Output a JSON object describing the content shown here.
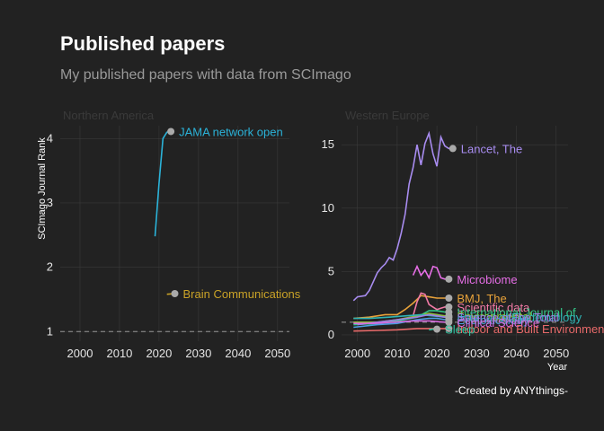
{
  "title": "Published papers",
  "subtitle": "My published papers with data from SCImago",
  "caption": "-Created by ANYthings-",
  "colors": {
    "background": "#222222",
    "grid": "#3a3a3a",
    "reference_line": "#9a9a9a",
    "endpoint": "#aaaaaa"
  },
  "chart_data": [
    {
      "type": "line",
      "facet": "Northern America",
      "xlabel": "",
      "ylabel": "SCImago Journal Rank",
      "xlim": [
        1995,
        2053
      ],
      "ylim": [
        0.85,
        4.2
      ],
      "x_ticks": [
        2000,
        2010,
        2020,
        2030,
        2040,
        2050
      ],
      "y_ticks": [
        1,
        2,
        3,
        4
      ],
      "reference_line_y": 1,
      "grid": true,
      "series": [
        {
          "name": "JAMA network open",
          "color": "#2bb3d9",
          "points": [
            [
              2019,
              2.48
            ],
            [
              2020,
              3.3
            ],
            [
              2021,
              4.0
            ],
            [
              2022,
              4.1
            ],
            [
              2023,
              4.11
            ]
          ]
        },
        {
          "name": "Brain Communications",
          "color": "#c9a227",
          "points": [
            [
              2022,
              1.58
            ],
            [
              2024,
              1.59
            ]
          ]
        }
      ]
    },
    {
      "type": "line",
      "facet": "Western Europe",
      "xlabel": "Year",
      "ylabel": "",
      "xlim": [
        1996,
        2053
      ],
      "ylim": [
        -0.5,
        16.5
      ],
      "x_ticks": [
        2000,
        2010,
        2020,
        2030,
        2040,
        2050
      ],
      "y_ticks": [
        0,
        5,
        10,
        15
      ],
      "reference_line_y": 1,
      "grid": true,
      "series": [
        {
          "name": "Lancet, The",
          "color": "#a88cf0",
          "points": [
            [
              1999,
              2.7
            ],
            [
              2000,
              3.0
            ],
            [
              2002,
              3.1
            ],
            [
              2003,
              3.5
            ],
            [
              2004,
              4.2
            ],
            [
              2005,
              4.9
            ],
            [
              2006,
              5.3
            ],
            [
              2007,
              5.6
            ],
            [
              2008,
              6.1
            ],
            [
              2009,
              5.9
            ],
            [
              2010,
              6.8
            ],
            [
              2011,
              8.0
            ],
            [
              2012,
              9.5
            ],
            [
              2013,
              11.9
            ],
            [
              2014,
              13.2
            ],
            [
              2015,
              15.0
            ],
            [
              2016,
              13.4
            ],
            [
              2017,
              15.1
            ],
            [
              2018,
              15.9
            ],
            [
              2019,
              14.3
            ],
            [
              2020,
              13.3
            ],
            [
              2021,
              15.6
            ],
            [
              2022,
              14.9
            ],
            [
              2023,
              14.7
            ],
            [
              2024,
              14.7
            ]
          ]
        },
        {
          "name": "Microbiome",
          "color": "#e66ee6",
          "points": [
            [
              2014,
              4.7
            ],
            [
              2015,
              5.4
            ],
            [
              2016,
              4.7
            ],
            [
              2017,
              5.1
            ],
            [
              2018,
              4.5
            ],
            [
              2019,
              5.4
            ],
            [
              2020,
              5.3
            ],
            [
              2021,
              4.5
            ],
            [
              2022,
              4.4
            ],
            [
              2023,
              4.4
            ]
          ]
        },
        {
          "name": "BMJ, The",
          "color": "#e8a23a",
          "points": [
            [
              1999,
              1.3
            ],
            [
              2003,
              1.4
            ],
            [
              2007,
              1.6
            ],
            [
              2010,
              1.6
            ],
            [
              2012,
              2.0
            ],
            [
              2014,
              2.5
            ],
            [
              2016,
              3.1
            ],
            [
              2018,
              3.0
            ],
            [
              2020,
              2.9
            ],
            [
              2022,
              2.9
            ],
            [
              2023,
              2.9
            ]
          ]
        },
        {
          "name": "Scientific data",
          "color": "#f27aa6",
          "points": [
            [
              2014,
              1.5
            ],
            [
              2015,
              2.6
            ],
            [
              2016,
              3.3
            ],
            [
              2017,
              3.2
            ],
            [
              2018,
              2.4
            ],
            [
              2019,
              2.2
            ],
            [
              2020,
              2.0
            ],
            [
              2021,
              2.1
            ],
            [
              2022,
              2.2
            ],
            [
              2023,
              2.2
            ]
          ]
        },
        {
          "name": "International Journal of",
          "color": "#33c98a",
          "points": [
            [
              1999,
              0.8
            ],
            [
              2005,
              0.9
            ],
            [
              2010,
              1.1
            ],
            [
              2015,
              1.4
            ],
            [
              2018,
              1.9
            ],
            [
              2020,
              1.9
            ],
            [
              2022,
              1.8
            ],
            [
              2023,
              1.8
            ]
          ]
        },
        {
          "name": "Environmental",
          "color": "#8fbf3b",
          "points": [
            [
              1999,
              1.0
            ],
            [
              2005,
              1.0
            ],
            [
              2010,
              1.2
            ],
            [
              2015,
              1.5
            ],
            [
              2018,
              1.7
            ],
            [
              2020,
              1.6
            ],
            [
              2022,
              1.5
            ],
            [
              2023,
              1.5
            ]
          ]
        },
        {
          "name": "Journal of Epidemiology",
          "color": "#2fb5b5",
          "points": [
            [
              1999,
              1.3
            ],
            [
              2003,
              1.3
            ],
            [
              2008,
              1.4
            ],
            [
              2012,
              1.5
            ],
            [
              2016,
              1.6
            ],
            [
              2019,
              1.5
            ],
            [
              2022,
              1.4
            ],
            [
              2023,
              1.4
            ]
          ]
        },
        {
          "name": "Ecotoxicology",
          "color": "#4a9fe0",
          "points": [
            [
              1999,
              0.6
            ],
            [
              2005,
              0.8
            ],
            [
              2010,
              0.9
            ],
            [
              2015,
              1.2
            ],
            [
              2018,
              1.3
            ],
            [
              2020,
              1.3
            ],
            [
              2022,
              1.2
            ],
            [
              2023,
              1.2
            ]
          ]
        },
        {
          "name": "Science of the Total",
          "color": "#a07ce6",
          "points": [
            [
              2000,
              0.8
            ],
            [
              2005,
              1.0
            ],
            [
              2010,
              1.2
            ],
            [
              2015,
              1.4
            ],
            [
              2018,
              1.6
            ],
            [
              2020,
              1.5
            ],
            [
              2022,
              1.4
            ],
            [
              2023,
              1.4
            ]
          ]
        },
        {
          "name": "Clinical Science",
          "color": "#d66be0",
          "points": [
            [
              1999,
              0.9
            ],
            [
              2004,
              0.9
            ],
            [
              2009,
              1.0
            ],
            [
              2014,
              1.1
            ],
            [
              2018,
              1.1
            ],
            [
              2022,
              1.0
            ],
            [
              2023,
              1.0
            ]
          ]
        },
        {
          "name": "Indoor and Built Environment",
          "color": "#e86a6a",
          "points": [
            [
              1999,
              0.3
            ],
            [
              2005,
              0.35
            ],
            [
              2010,
              0.4
            ],
            [
              2015,
              0.5
            ],
            [
              2018,
              0.5
            ],
            [
              2020,
              0.5
            ],
            [
              2022,
              0.5
            ],
            [
              2023,
              0.5
            ]
          ]
        },
        {
          "name": "Sleep",
          "color": "#2ec4a0",
          "points": [
            [
              2018,
              0.4
            ],
            [
              2019,
              0.45
            ],
            [
              2020,
              0.45
            ]
          ]
        }
      ]
    }
  ]
}
